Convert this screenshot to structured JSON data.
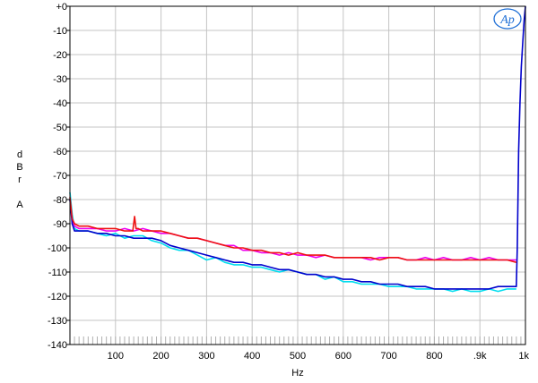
{
  "logo": {
    "text": "Ap",
    "color": "#1f6fd6"
  },
  "chart_data": {
    "type": "line",
    "xlabel": "Hz",
    "ylabel": [
      "d",
      "B",
      "r",
      "",
      "A"
    ],
    "xlim": [
      0,
      1000
    ],
    "ylim": [
      -140,
      0
    ],
    "x_ticks": [
      {
        "value": 100,
        "label": "100"
      },
      {
        "value": 200,
        "label": "200"
      },
      {
        "value": 300,
        "label": "300"
      },
      {
        "value": 400,
        "label": "400"
      },
      {
        "value": 500,
        "label": "500"
      },
      {
        "value": 600,
        "label": "600"
      },
      {
        "value": 700,
        "label": "700"
      },
      {
        "value": 800,
        "label": "800"
      },
      {
        "value": 900,
        "label": ".9k"
      },
      {
        "value": 1000,
        "label": "1k"
      }
    ],
    "y_ticks": [
      {
        "value": 0,
        "label": "+0"
      },
      {
        "value": -10,
        "label": "-10"
      },
      {
        "value": -20,
        "label": "-20"
      },
      {
        "value": -30,
        "label": "-30"
      },
      {
        "value": -40,
        "label": "-40"
      },
      {
        "value": -50,
        "label": "-50"
      },
      {
        "value": -60,
        "label": "-60"
      },
      {
        "value": -70,
        "label": "-70"
      },
      {
        "value": -80,
        "label": "-80"
      },
      {
        "value": -90,
        "label": "-90"
      },
      {
        "value": -100,
        "label": "-100"
      },
      {
        "value": -110,
        "label": "-110"
      },
      {
        "value": -120,
        "label": "-120"
      },
      {
        "value": -130,
        "label": "-130"
      },
      {
        "value": -140,
        "label": "-140"
      }
    ],
    "grid": true,
    "series": [
      {
        "color": "#00ddee",
        "x": [
          0,
          5,
          10,
          20,
          40,
          60,
          80,
          100,
          120,
          140,
          160,
          180,
          200,
          220,
          240,
          260,
          280,
          300,
          320,
          340,
          360,
          380,
          400,
          420,
          440,
          460,
          480,
          500,
          520,
          540,
          560,
          580,
          600,
          620,
          640,
          660,
          680,
          700,
          720,
          740,
          760,
          780,
          800,
          820,
          840,
          860,
          880,
          900,
          920,
          940,
          960,
          980
        ],
        "y": [
          -77,
          -86,
          -92,
          -93,
          -93,
          -94,
          -95,
          -94,
          -96,
          -95,
          -95,
          -97,
          -98,
          -100,
          -101,
          -101,
          -103,
          -105,
          -104,
          -106,
          -107,
          -107,
          -108,
          -108,
          -109,
          -110,
          -109,
          -110,
          -111,
          -111,
          -113,
          -112,
          -114,
          -114,
          -115,
          -115,
          -115,
          -116,
          -116,
          -116,
          -117,
          -117,
          -117,
          -117,
          -118,
          -117,
          -118,
          -118,
          -117,
          -118,
          -117,
          -117
        ]
      },
      {
        "color": "#ee00ee",
        "x": [
          0,
          5,
          10,
          20,
          40,
          60,
          80,
          100,
          120,
          140,
          160,
          180,
          200,
          220,
          240,
          260,
          280,
          300,
          320,
          340,
          360,
          380,
          400,
          420,
          440,
          460,
          480,
          500,
          520,
          540,
          560,
          580,
          600,
          620,
          640,
          660,
          680,
          700,
          720,
          740,
          760,
          780,
          800,
          820,
          840,
          860,
          880,
          900,
          920,
          940,
          960,
          980
        ],
        "y": [
          -80,
          -88,
          -91,
          -92,
          -92,
          -92,
          -93,
          -93,
          -92,
          -93,
          -92,
          -93,
          -94,
          -94,
          -95,
          -96,
          -96,
          -97,
          -98,
          -99,
          -99,
          -101,
          -101,
          -102,
          -102,
          -103,
          -102,
          -103,
          -103,
          -104,
          -103,
          -104,
          -104,
          -104,
          -104,
          -105,
          -104,
          -104,
          -104,
          -105,
          -105,
          -104,
          -105,
          -104,
          -105,
          -105,
          -104,
          -105,
          -104,
          -105,
          -105,
          -105
        ]
      },
      {
        "color": "#0000cc",
        "x": [
          0,
          5,
          10,
          20,
          40,
          60,
          80,
          100,
          120,
          140,
          160,
          180,
          200,
          220,
          240,
          260,
          280,
          300,
          320,
          340,
          360,
          380,
          400,
          420,
          440,
          460,
          480,
          500,
          520,
          540,
          560,
          580,
          600,
          620,
          640,
          660,
          680,
          700,
          720,
          740,
          760,
          780,
          800,
          820,
          840,
          860,
          880,
          900,
          920,
          940,
          960,
          980,
          982,
          985,
          988,
          991,
          994,
          997,
          1000
        ],
        "y": [
          -80,
          -90,
          -93,
          -93,
          -93,
          -94,
          -94,
          -95,
          -95,
          -96,
          -96,
          -96,
          -97,
          -99,
          -100,
          -101,
          -102,
          -103,
          -104,
          -105,
          -106,
          -106,
          -107,
          -107,
          -108,
          -109,
          -109,
          -110,
          -111,
          -111,
          -112,
          -112,
          -113,
          -113,
          -114,
          -114,
          -115,
          -115,
          -115,
          -116,
          -116,
          -116,
          -117,
          -117,
          -117,
          -117,
          -117,
          -117,
          -117,
          -116,
          -116,
          -116,
          -100,
          -60,
          -40,
          -25,
          -15,
          -6,
          0
        ]
      },
      {
        "color": "#ee1111",
        "x": [
          0,
          5,
          10,
          20,
          40,
          60,
          80,
          100,
          120,
          138,
          142,
          145,
          150,
          160,
          180,
          200,
          220,
          240,
          260,
          280,
          300,
          320,
          340,
          360,
          380,
          400,
          420,
          440,
          460,
          480,
          500,
          520,
          540,
          560,
          580,
          600,
          620,
          640,
          660,
          680,
          700,
          720,
          740,
          760,
          780,
          800,
          820,
          840,
          860,
          880,
          900,
          920,
          940,
          960,
          980
        ],
        "y": [
          -79,
          -88,
          -90,
          -91,
          -91,
          -92,
          -92,
          -92,
          -93,
          -93,
          -87,
          -92,
          -92,
          -93,
          -93,
          -93,
          -94,
          -95,
          -96,
          -96,
          -97,
          -98,
          -99,
          -100,
          -100,
          -101,
          -101,
          -102,
          -102,
          -103,
          -102,
          -103,
          -103,
          -103,
          -104,
          -104,
          -104,
          -104,
          -104,
          -105,
          -104,
          -104,
          -105,
          -105,
          -105,
          -105,
          -105,
          -105,
          -105,
          -105,
          -105,
          -105,
          -105,
          -105,
          -106
        ]
      }
    ]
  }
}
